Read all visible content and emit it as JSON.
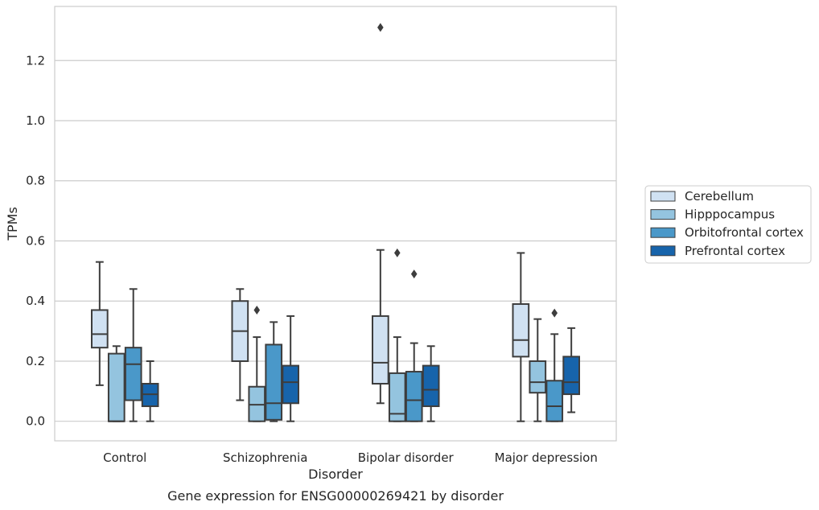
{
  "caption": "Gene expression for ENSG00000269421 by disorder",
  "chart_data": {
    "type": "box",
    "title": "",
    "xlabel": "Disorder",
    "ylabel": "TPMs",
    "ylim": [
      -0.065,
      1.38
    ],
    "yticks": [
      "0.0",
      "0.2",
      "0.4",
      "0.6",
      "0.8",
      "1.0",
      "1.2"
    ],
    "grid": "horizontal",
    "legend_position": "right",
    "categories": [
      "Control",
      "Schizophrenia",
      "Bipolar disorder",
      "Major depression"
    ],
    "series": [
      {
        "name": "Cerebellum",
        "color": "#d0e1f2",
        "boxes": [
          {
            "whislo": 0.12,
            "q1": 0.245,
            "med": 0.29,
            "q3": 0.37,
            "whishi": 0.53,
            "fliers": []
          },
          {
            "whislo": 0.07,
            "q1": 0.2,
            "med": 0.3,
            "q3": 0.4,
            "whishi": 0.44,
            "fliers": []
          },
          {
            "whislo": 0.06,
            "q1": 0.125,
            "med": 0.195,
            "q3": 0.35,
            "whishi": 0.57,
            "fliers": [
              1.31
            ]
          },
          {
            "whislo": 0.0,
            "q1": 0.215,
            "med": 0.27,
            "q3": 0.39,
            "whishi": 0.56,
            "fliers": []
          }
        ]
      },
      {
        "name": "Hipppocampus",
        "color": "#94c4df",
        "boxes": [
          {
            "whislo": 0.0,
            "q1": 0.0,
            "med": 0.0,
            "q3": 0.225,
            "whishi": 0.25,
            "fliers": []
          },
          {
            "whislo": 0.0,
            "q1": 0.0,
            "med": 0.055,
            "q3": 0.115,
            "whishi": 0.28,
            "fliers": [
              0.37
            ]
          },
          {
            "whislo": 0.0,
            "q1": 0.0,
            "med": 0.025,
            "q3": 0.16,
            "whishi": 0.28,
            "fliers": [
              0.56
            ]
          },
          {
            "whislo": 0.0,
            "q1": 0.095,
            "med": 0.13,
            "q3": 0.2,
            "whishi": 0.34,
            "fliers": []
          }
        ]
      },
      {
        "name": "Orbitofrontal cortex",
        "color": "#4a98c9",
        "boxes": [
          {
            "whislo": 0.0,
            "q1": 0.07,
            "med": 0.19,
            "q3": 0.245,
            "whishi": 0.44,
            "fliers": []
          },
          {
            "whislo": 0.0,
            "q1": 0.005,
            "med": 0.06,
            "q3": 0.255,
            "whishi": 0.33,
            "fliers": []
          },
          {
            "whislo": 0.0,
            "q1": 0.0,
            "med": 0.07,
            "q3": 0.165,
            "whishi": 0.26,
            "fliers": [
              0.49
            ]
          },
          {
            "whislo": 0.0,
            "q1": 0.0,
            "med": 0.05,
            "q3": 0.135,
            "whishi": 0.29,
            "fliers": [
              0.36
            ]
          }
        ]
      },
      {
        "name": "Prefrontal cortex",
        "color": "#1764ab",
        "boxes": [
          {
            "whislo": 0.0,
            "q1": 0.05,
            "med": 0.09,
            "q3": 0.125,
            "whishi": 0.2,
            "fliers": []
          },
          {
            "whislo": 0.0,
            "q1": 0.06,
            "med": 0.13,
            "q3": 0.185,
            "whishi": 0.35,
            "fliers": []
          },
          {
            "whislo": 0.0,
            "q1": 0.05,
            "med": 0.105,
            "q3": 0.185,
            "whishi": 0.25,
            "fliers": []
          },
          {
            "whislo": 0.03,
            "q1": 0.09,
            "med": 0.13,
            "q3": 0.215,
            "whishi": 0.31,
            "fliers": []
          }
        ]
      }
    ]
  }
}
